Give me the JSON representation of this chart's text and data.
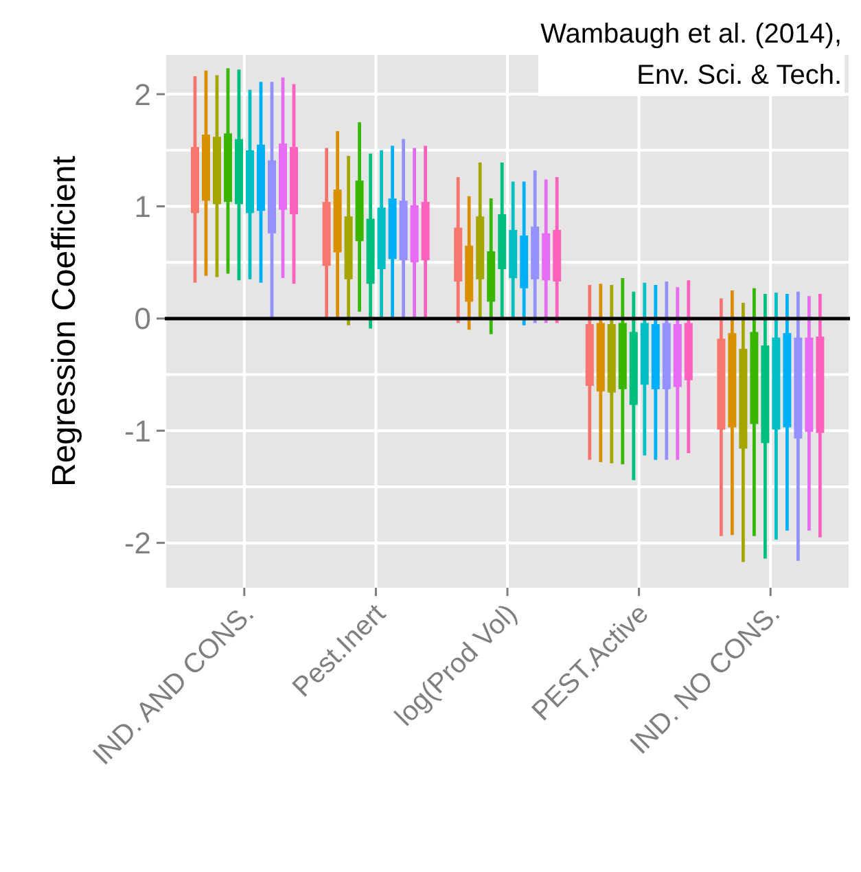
{
  "chart_data": {
    "type": "bar",
    "ylabel": "Regression Coefficient",
    "annotations": [
      "Wambaugh et al. (2014),\nEnv. Sci. & Tech."
    ],
    "categories": [
      "IND. AND CONS.",
      "Pest.Inert",
      "log(Prod Vol)",
      "PEST.Active",
      "IND. NO CONS."
    ],
    "ylim": [
      -2.4,
      2.35
    ],
    "yticks": [
      -2,
      {
        "value": -1.5,
        "label": null
      },
      -1,
      {
        "value": -0.5,
        "label": null
      },
      0,
      {
        "value": 0.5,
        "label": null
      },
      1,
      {
        "value": 1.5,
        "label": null
      },
      2
    ],
    "grid": true,
    "legend": false,
    "ref_lines": [
      {
        "axis": "y",
        "value": 0,
        "color": "#000000"
      }
    ],
    "series": [
      {
        "color": "#f8766d",
        "base": [
          0.94,
          0.47,
          0.33,
          -0.6,
          -0.99
        ],
        "values": [
          0.59,
          0.57,
          0.48,
          0.55,
          0.81
        ],
        "errors": [
          [
            0.32,
            2.16
          ],
          [
            0.0,
            1.52
          ],
          [
            -0.04,
            1.26
          ],
          [
            -1.26,
            0.3
          ],
          [
            -1.94,
            0.18
          ]
        ]
      },
      {
        "color": "#d89000",
        "base": [
          1.05,
          0.59,
          0.15,
          -0.65,
          -0.97
        ],
        "values": [
          0.59,
          0.56,
          0.5,
          0.61,
          0.84
        ],
        "errors": [
          [
            0.38,
            2.21
          ],
          [
            0.0,
            1.67
          ],
          [
            -0.1,
            1.09
          ],
          [
            -1.28,
            0.31
          ],
          [
            -1.93,
            0.25
          ]
        ]
      },
      {
        "color": "#a3a500",
        "base": [
          1.02,
          0.35,
          0.35,
          -0.66,
          -1.16
        ],
        "values": [
          0.6,
          0.56,
          0.56,
          0.61,
          0.89
        ],
        "errors": [
          [
            0.37,
            2.17
          ],
          [
            -0.06,
            1.45
          ],
          [
            0.0,
            1.39
          ],
          [
            -1.29,
            0.3
          ],
          [
            -2.17,
            0.14
          ]
        ]
      },
      {
        "color": "#39b600",
        "base": [
          1.04,
          0.69,
          0.15,
          -0.63,
          -0.94
        ],
        "values": [
          0.61,
          0.54,
          0.45,
          0.59,
          0.82
        ],
        "errors": [
          [
            0.4,
            2.23
          ],
          [
            0.06,
            1.75
          ],
          [
            -0.14,
            1.07
          ],
          [
            -1.3,
            0.36
          ],
          [
            -1.94,
            0.27
          ]
        ]
      },
      {
        "color": "#00bf7d",
        "base": [
          1.02,
          0.31,
          0.44,
          -0.77,
          -1.11
        ],
        "values": [
          0.58,
          0.58,
          0.49,
          0.65,
          0.87
        ],
        "errors": [
          [
            0.34,
            2.22
          ],
          [
            -0.09,
            1.47
          ],
          [
            0.0,
            1.39
          ],
          [
            -1.44,
            0.24
          ],
          [
            -2.14,
            0.22
          ]
        ]
      },
      {
        "color": "#00bfc4",
        "base": [
          0.94,
          0.44,
          0.36,
          -0.59,
          -0.99
        ],
        "values": [
          0.56,
          0.55,
          0.43,
          0.55,
          0.82
        ],
        "errors": [
          [
            0.35,
            2.04
          ],
          [
            0.0,
            1.5
          ],
          [
            0.0,
            1.22
          ],
          [
            -1.22,
            0.32
          ],
          [
            -1.97,
            0.23
          ]
        ]
      },
      {
        "color": "#00b0f6",
        "base": [
          0.96,
          0.53,
          0.27,
          -0.63,
          -0.97
        ],
        "values": [
          0.59,
          0.54,
          0.47,
          0.58,
          0.84
        ],
        "errors": [
          [
            0.32,
            2.11
          ],
          [
            0.0,
            1.54
          ],
          [
            -0.06,
            1.22
          ],
          [
            -1.26,
            0.3
          ],
          [
            -1.89,
            0.22
          ]
        ]
      },
      {
        "color": "#9590ff",
        "base": [
          0.76,
          0.52,
          0.35,
          -0.63,
          -1.07
        ],
        "values": [
          0.65,
          0.53,
          0.47,
          0.59,
          0.9
        ],
        "errors": [
          [
            0.0,
            2.11
          ],
          [
            0.0,
            1.6
          ],
          [
            -0.04,
            1.32
          ],
          [
            -1.26,
            0.33
          ],
          [
            -2.16,
            0.24
          ]
        ]
      },
      {
        "color": "#e76bf3",
        "base": [
          0.97,
          0.5,
          0.34,
          -0.61,
          -1.01
        ],
        "values": [
          0.59,
          0.51,
          0.42,
          0.56,
          0.84
        ],
        "errors": [
          [
            0.36,
            2.15
          ],
          [
            0.0,
            1.52
          ],
          [
            -0.04,
            1.24
          ],
          [
            -1.26,
            0.28
          ],
          [
            -1.89,
            0.2
          ]
        ]
      },
      {
        "color": "#ff62bc",
        "base": [
          0.93,
          0.52,
          0.33,
          -0.55,
          -1.02
        ],
        "values": [
          0.6,
          0.52,
          0.46,
          0.51,
          0.86
        ],
        "errors": [
          [
            0.31,
            2.09
          ],
          [
            0.0,
            1.54
          ],
          [
            -0.04,
            1.26
          ],
          [
            -1.2,
            0.34
          ],
          [
            -1.95,
            0.22
          ]
        ]
      }
    ]
  }
}
